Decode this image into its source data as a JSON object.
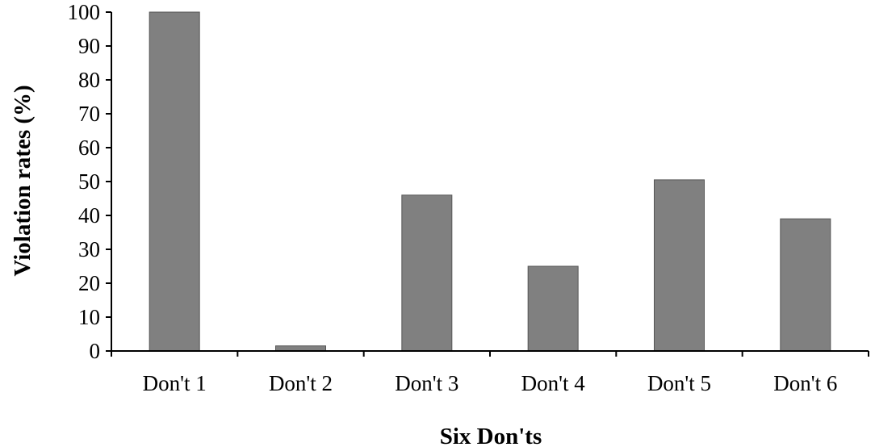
{
  "chart_data": {
    "type": "bar",
    "categories": [
      "Don't 1",
      "Don't 2",
      "Don't 3",
      "Don't 4",
      "Don't 5",
      "Don't 6"
    ],
    "values": [
      100,
      1.5,
      46,
      25,
      50.5,
      39
    ],
    "xlabel": "Six Don'ts",
    "ylabel": "Violation rates  (%)",
    "ylim": [
      0,
      100
    ],
    "yticks": [
      "0",
      "10",
      "20",
      "30",
      "40",
      "50",
      "60",
      "70",
      "80",
      "90",
      "100"
    ],
    "grid": false,
    "legend": "none",
    "bar_color": "#808080",
    "bar_edge_color": "#555555",
    "axis_color": "#000000"
  }
}
